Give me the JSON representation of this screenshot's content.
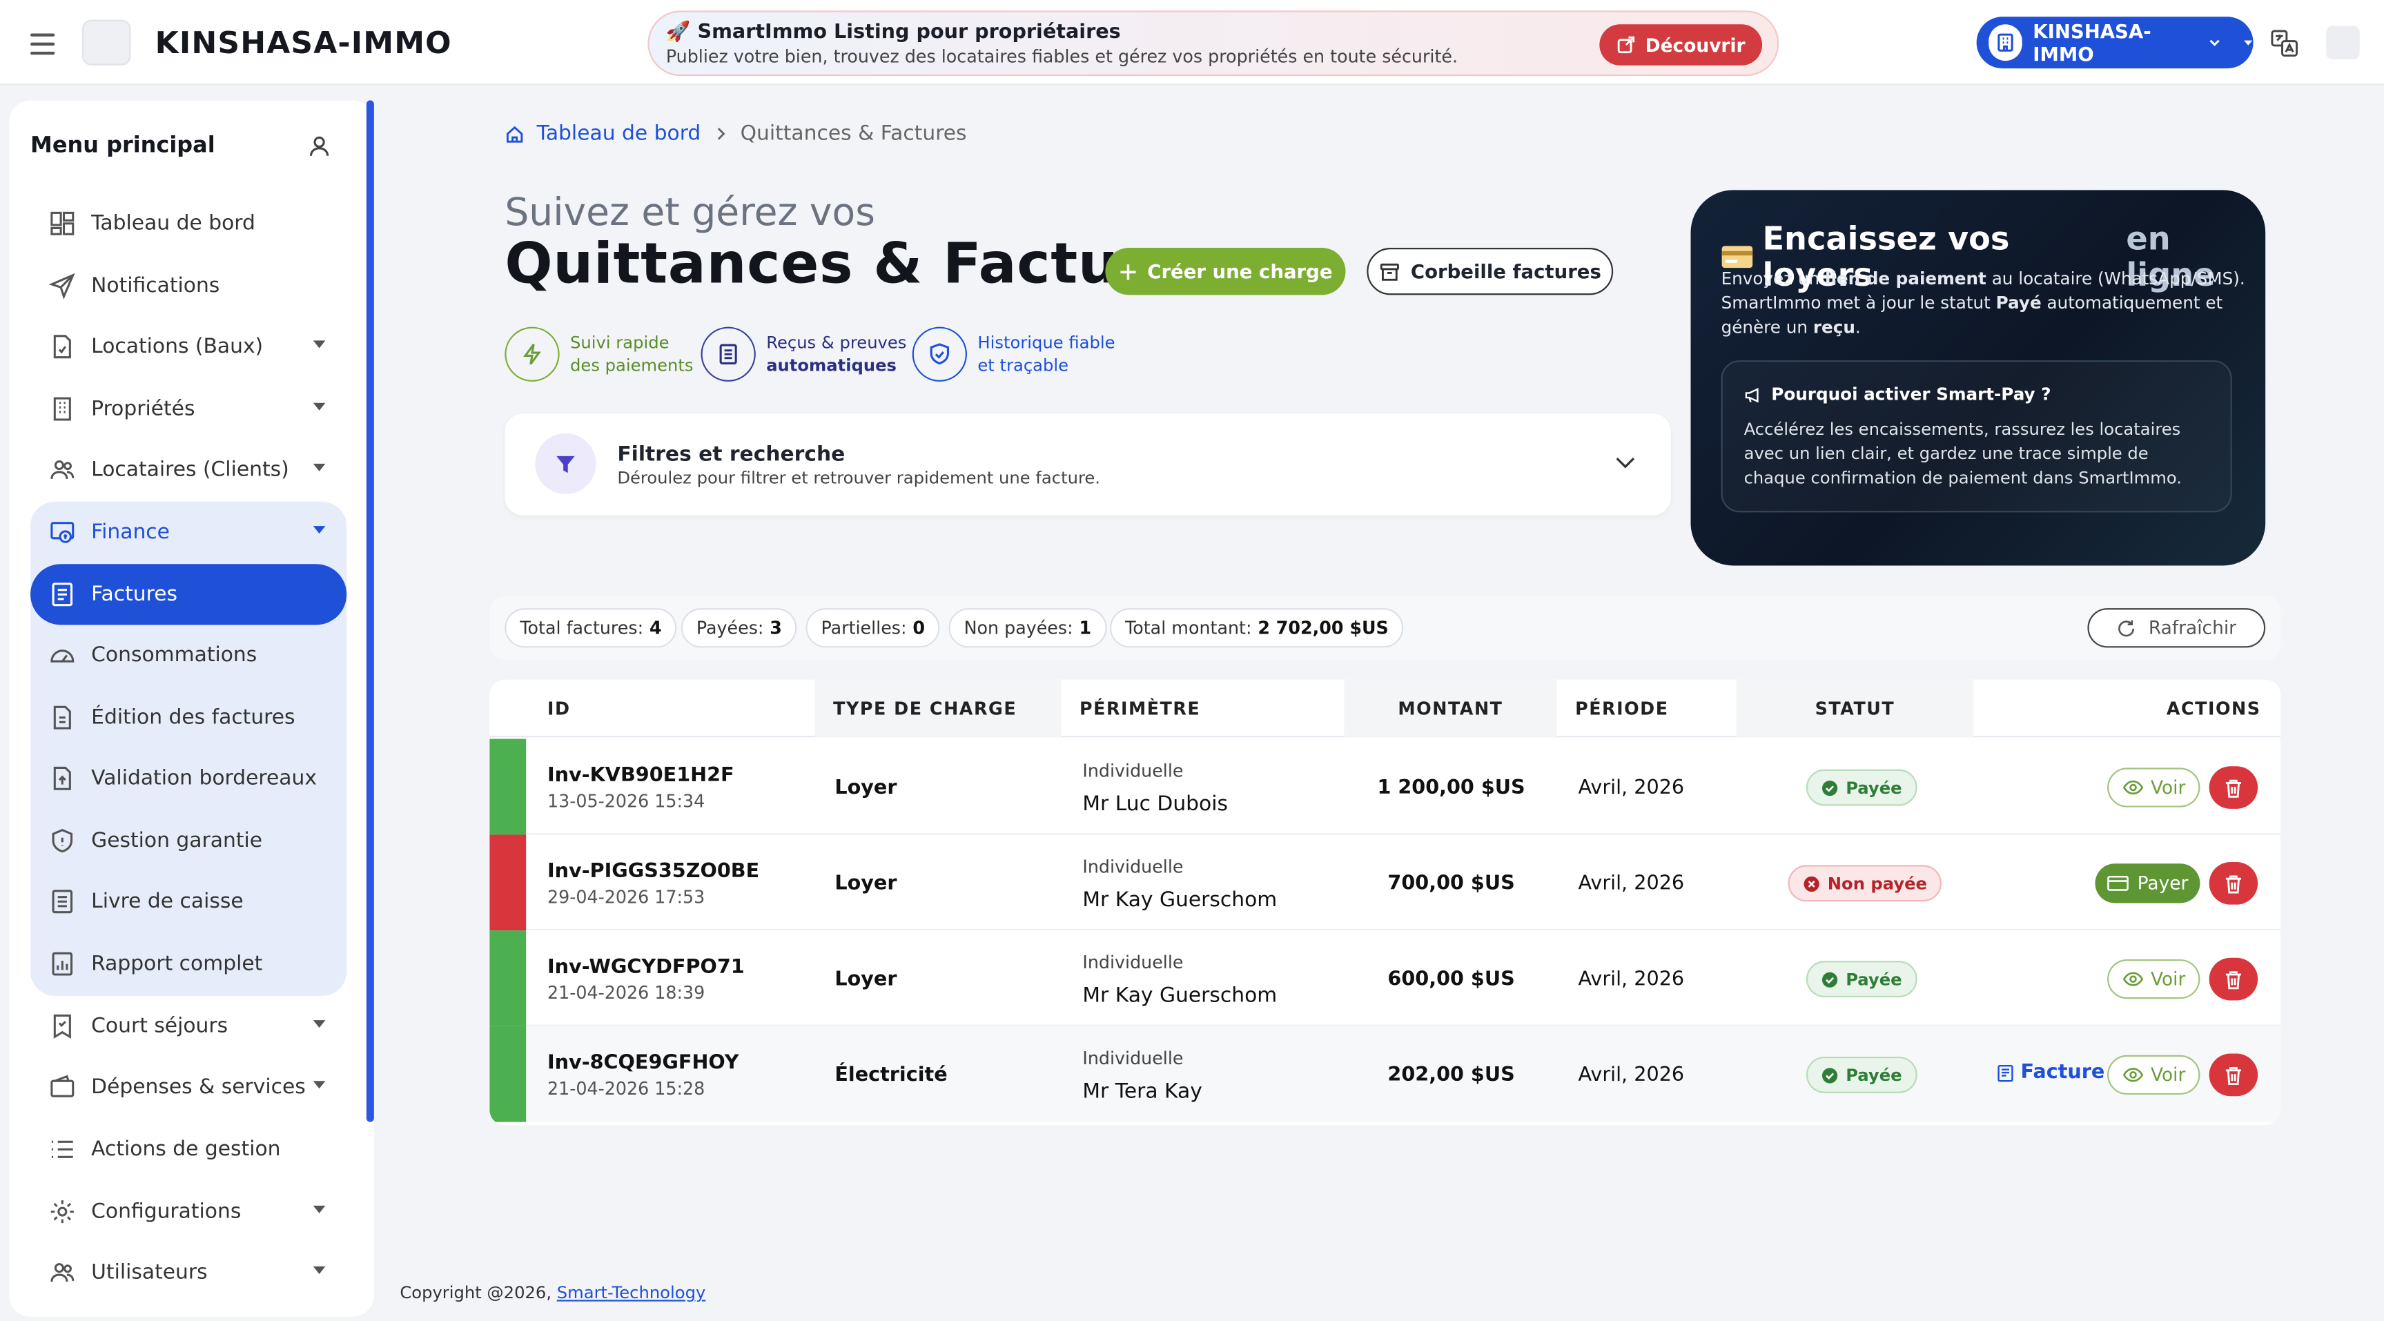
{
  "header": {
    "brand": "KINSHASA-IMMO",
    "banner_title": "🚀 SmartImmo Listing pour propriétaires",
    "banner_text": "Publiez votre bien, trouvez des locataires fiables et gérez vos propriétés en toute sécurité.",
    "banner_button": "Découvrir",
    "org_name": "KINSHASA-IMMO"
  },
  "sidebar": {
    "title": "Menu principal",
    "items": [
      {
        "label": "Tableau de bord",
        "icon": "dashboard-icon"
      },
      {
        "label": "Notifications",
        "icon": "send-icon"
      },
      {
        "label": "Locations (Baux)",
        "icon": "document-icon"
      },
      {
        "label": "Propriétés",
        "icon": "building-icon"
      },
      {
        "label": "Locataires (Clients)",
        "icon": "users-icon"
      },
      {
        "label": "Finance",
        "icon": "finance-icon"
      },
      {
        "label": "Factures",
        "icon": "invoice-icon"
      },
      {
        "label": "Consommations",
        "icon": "gauge-icon"
      },
      {
        "label": "Édition des factures",
        "icon": "document-edit-icon"
      },
      {
        "label": "Validation bordereaux",
        "icon": "upload-doc-icon"
      },
      {
        "label": "Gestion garantie",
        "icon": "shield-icon"
      },
      {
        "label": "Livre de caisse",
        "icon": "ledger-icon"
      },
      {
        "label": "Rapport complet",
        "icon": "report-icon"
      },
      {
        "label": "Court séjours",
        "icon": "bookmark-icon"
      },
      {
        "label": "Dépenses & services",
        "icon": "wallet-icon"
      },
      {
        "label": "Actions de gestion",
        "icon": "list-icon"
      },
      {
        "label": "Configurations",
        "icon": "gear-icon"
      },
      {
        "label": "Utilisateurs",
        "icon": "users-icon"
      }
    ]
  },
  "breadcrumb": {
    "home": "Tableau de bord",
    "current": "Quittances & Factures"
  },
  "page": {
    "subtitle": "Suivez et gérez vos",
    "title": "Quittances & Factures",
    "create_button": "Créer une charge",
    "trash_button": "Corbeille factures"
  },
  "features": [
    {
      "line1": "Suivi rapide",
      "line2": "des paiements"
    },
    {
      "line1": "Reçus & preuves",
      "line2": "automatiques"
    },
    {
      "line1": "Historique fiable",
      "line2": "et traçable"
    }
  ],
  "filters": {
    "title": "Filtres et recherche",
    "subtitle": "Déroulez pour filtrer et retrouver rapidement une facture."
  },
  "promo": {
    "title_a": "Encaissez vos loyers",
    "title_b": "en ligne",
    "desc_1": "Envoyez un ",
    "desc_b1": "lien de paiement",
    "desc_2": " au locataire (WhatsApp/SMS). SmartImmo met à jour le statut ",
    "desc_b2": "Payé",
    "desc_3": " automatiquement et génère un ",
    "desc_b3": "reçu",
    "desc_4": ".",
    "box_title": "Pourquoi activer Smart-Pay ?",
    "box_text": "Accélérez les encaissements, rassurez les locataires avec un lien clair, et gardez une trace simple de chaque confirmation de paiement dans SmartImmo."
  },
  "stats": {
    "total_label": "Total factures:",
    "total": "4",
    "paid_label": "Payées:",
    "paid": "3",
    "partial_label": "Partielles:",
    "partial": "0",
    "unpaid_label": "Non payées:",
    "unpaid": "1",
    "amount_label": "Total montant:",
    "amount": "2 702,00 $US",
    "refresh": "Rafraîchir"
  },
  "table": {
    "headers": [
      "ID",
      "TYPE DE CHARGE",
      "PÉRIMÈTRE",
      "MONTANT",
      "PÉRIODE",
      "STATUT",
      "ACTIONS"
    ],
    "rows": [
      {
        "id": "Inv-KVB90E1H2F",
        "date": "13-05-2026 15:34",
        "type": "Loyer",
        "scope": "Individuelle",
        "person": "Mr Luc Dubois",
        "amount": "1 200,00 $US",
        "period": "Avril, 2026",
        "status": "Payée",
        "action": "Voir"
      },
      {
        "id": "Inv-PIGGS35ZO0BE",
        "date": "29-04-2026 17:53",
        "type": "Loyer",
        "scope": "Individuelle",
        "person": "Mr Kay Guerschom",
        "amount": "700,00 $US",
        "period": "Avril, 2026",
        "status": "Non payée",
        "action": "Payer"
      },
      {
        "id": "Inv-WGCYDFPO71",
        "date": "21-04-2026 18:39",
        "type": "Loyer",
        "scope": "Individuelle",
        "person": "Mr Kay Guerschom",
        "amount": "600,00 $US",
        "period": "Avril, 2026",
        "status": "Payée",
        "action": "Voir"
      },
      {
        "id": "Inv-8CQE9GFHOY",
        "date": "21-04-2026 15:28",
        "type": "Électricité",
        "scope": "Individuelle",
        "person": "Mr Tera Kay",
        "amount": "202,00 $US",
        "period": "Avril, 2026",
        "status": "Payée",
        "action": "Voir",
        "extra": "Facture"
      }
    ]
  },
  "footer": {
    "copyright": "Copyright @2026, ",
    "link": "Smart-Technology"
  },
  "colors": {
    "primary": "#1e50d8",
    "green": "#7cae32",
    "red": "#d8363c",
    "paid_bar": "#4caf50",
    "unpaid_bar": "#d8363c"
  }
}
